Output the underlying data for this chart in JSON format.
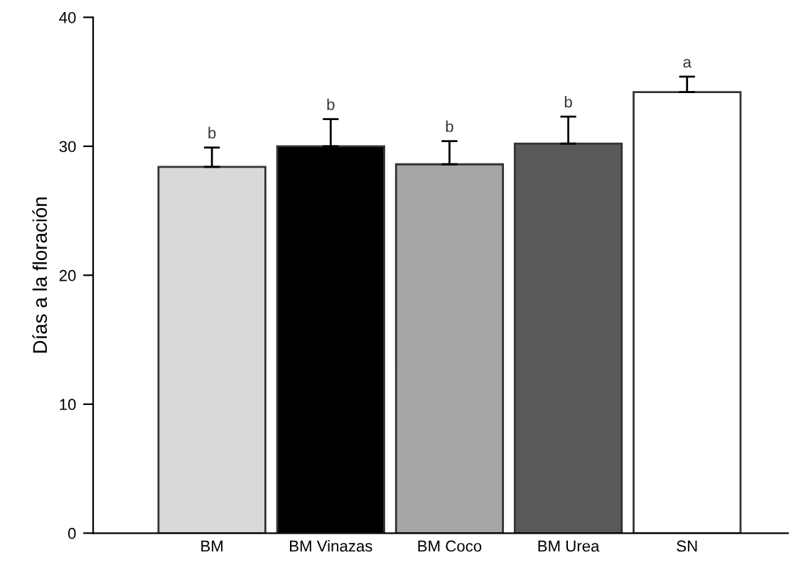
{
  "chart_data": {
    "type": "bar",
    "ylabel": "Días a la floración",
    "categories": [
      "BM",
      "BM Vinazas",
      "BM Coco",
      "BM Urea",
      "SN"
    ],
    "values": [
      28.4,
      30.0,
      28.6,
      30.2,
      34.2
    ],
    "errors": [
      1.5,
      2.1,
      1.8,
      2.1,
      1.2
    ],
    "colors": [
      "#d9d9d9",
      "#000000",
      "#a6a6a6",
      "#595959",
      "#ffffff"
    ],
    "ylim": [
      0,
      40
    ],
    "yticks": [
      0,
      10,
      20,
      30,
      40
    ],
    "grid": false,
    "annotations": [
      {
        "text": "b",
        "x": "BM",
        "y": 29.9
      },
      {
        "text": "b",
        "x": "BM Vinazas",
        "y": 32.1
      },
      {
        "text": "b",
        "x": "BM Coco",
        "y": 30.4
      },
      {
        "text": "b",
        "x": "BM Urea",
        "y": 32.3
      },
      {
        "text": "a",
        "x": "SN",
        "y": 35.4
      }
    ]
  }
}
